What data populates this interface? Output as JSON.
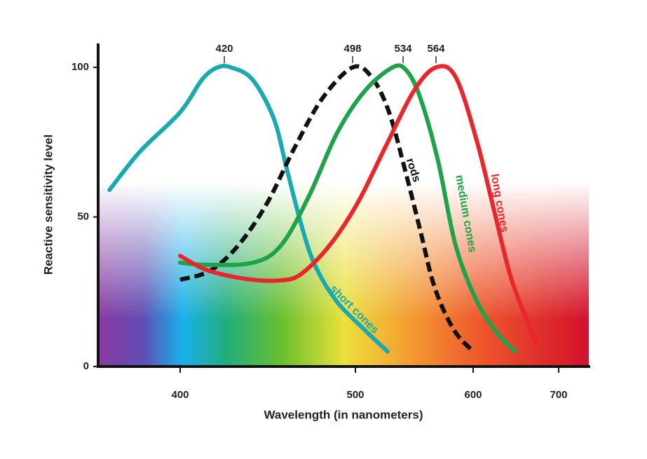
{
  "chart_data": {
    "type": "line",
    "x_label": "Wavelength (in nanometers)",
    "y_label": "Reactive sensitivity level",
    "xticks": [
      400,
      500,
      600,
      700
    ],
    "ylim": [
      0,
      108
    ],
    "yticks": [
      0,
      50,
      100
    ],
    "peak_labels": [
      420,
      498,
      534,
      564
    ],
    "series": [
      {
        "name": "short cones",
        "color": "#1aa9b0",
        "dashed": false,
        "x": [
          368,
          382,
          400,
          410,
          417,
          424,
          437,
          450,
          458,
          467,
          475,
          488,
          506,
          523
        ],
        "values": [
          59,
          72,
          85,
          96,
          100,
          100,
          96,
          83,
          66,
          47,
          34,
          22,
          12.5,
          5
        ]
      },
      {
        "name": "rods",
        "color": "#111111",
        "dashed": true,
        "x": [
          400,
          413.5,
          428.5,
          446,
          462.6,
          479.7,
          498,
          511.5,
          524,
          537,
          550,
          562.7,
          581,
          600
        ],
        "values": [
          29,
          32,
          40.5,
          54.6,
          73,
          89.7,
          100,
          96.8,
          85,
          64,
          45,
          26.5,
          12.4,
          5
        ]
      },
      {
        "name": "medium cones",
        "color": "#1fa34a",
        "dashed": false,
        "x": [
          400,
          411.9,
          437.5,
          454.5,
          471.5,
          488.5,
          506.5,
          526.5,
          537,
          549.8,
          566,
          583,
          604,
          628.7,
          649.2
        ],
        "values": [
          34.7,
          34,
          34.7,
          40.5,
          57,
          78,
          92,
          100,
          99,
          89.7,
          68.7,
          40.5,
          22,
          11,
          5
        ]
      },
      {
        "name": "long cones",
        "color": "#e8262b",
        "dashed": false,
        "x": [
          400,
          411.9,
          432.8,
          454.5,
          466.9,
          484,
          501.5,
          521,
          543.6,
          564,
          583,
          604,
          624.6,
          645,
          673.8
        ],
        "values": [
          37,
          32.3,
          29.3,
          28.8,
          31,
          40.5,
          54.6,
          73,
          92,
          100,
          96.8,
          75.7,
          52,
          29,
          7.7
        ]
      }
    ]
  }
}
